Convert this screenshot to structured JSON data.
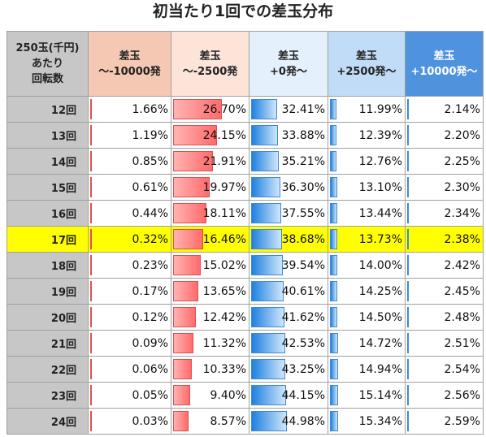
{
  "title": "初当たり1回での差玉分布",
  "header": {
    "spin": [
      "250玉(千円)",
      "あたり",
      "回転数"
    ],
    "columns": [
      [
        "差玉",
        "～-10000発"
      ],
      [
        "差玉",
        "～-2500発"
      ],
      [
        "差玉",
        "+0発～"
      ],
      [
        "差玉",
        "+2500発～"
      ],
      [
        "差玉",
        "+10000発～"
      ]
    ]
  },
  "chart_data": {
    "type": "table",
    "title": "初当たり1回での差玉分布",
    "row_header": "250玉(千円) あたり 回転数",
    "highlight_row": "17回",
    "categories": [
      "12回",
      "13回",
      "14回",
      "15回",
      "16回",
      "17回",
      "18回",
      "19回",
      "20回",
      "21回",
      "22回",
      "23回",
      "24回"
    ],
    "series": [
      {
        "name": "差玉 ～-10000発",
        "values": [
          1.66,
          1.19,
          0.85,
          0.61,
          0.44,
          0.32,
          0.23,
          0.17,
          0.12,
          0.09,
          0.06,
          0.05,
          0.03
        ],
        "labels": [
          "1.66%",
          "1.19%",
          "0.85%",
          "0.61%",
          "0.44%",
          "0.32%",
          "0.23%",
          "0.17%",
          "0.12%",
          "0.09%",
          "0.06%",
          "0.05%",
          "0.03%"
        ]
      },
      {
        "name": "差玉 ～-2500発",
        "values": [
          26.7,
          24.15,
          21.91,
          19.97,
          18.11,
          16.46,
          15.02,
          13.65,
          12.42,
          11.32,
          10.33,
          9.4,
          8.57
        ],
        "labels": [
          "26.70%",
          "24.15%",
          "21.91%",
          "19.97%",
          "18.11%",
          "16.46%",
          "15.02%",
          "13.65%",
          "12.42%",
          "11.32%",
          "10.33%",
          "9.40%",
          "8.57%"
        ]
      },
      {
        "name": "差玉 +0発～",
        "values": [
          32.41,
          33.88,
          35.21,
          36.3,
          37.55,
          38.68,
          39.54,
          40.61,
          41.62,
          42.53,
          43.25,
          44.15,
          44.98
        ],
        "labels": [
          "32.41%",
          "33.88%",
          "35.21%",
          "36.30%",
          "37.55%",
          "38.68%",
          "39.54%",
          "40.61%",
          "41.62%",
          "42.53%",
          "43.25%",
          "44.15%",
          "44.98%"
        ]
      },
      {
        "name": "差玉 +2500発～",
        "values": [
          11.99,
          12.39,
          12.76,
          13.1,
          13.44,
          13.73,
          14.0,
          14.25,
          14.5,
          14.72,
          14.94,
          15.14,
          15.34
        ],
        "labels": [
          "11.99%",
          "12.39%",
          "12.76%",
          "13.10%",
          "13.44%",
          "13.73%",
          "14.00%",
          "14.25%",
          "14.50%",
          "14.72%",
          "14.94%",
          "15.14%",
          "15.34%"
        ]
      },
      {
        "name": "差玉 +10000発～",
        "values": [
          2.14,
          2.2,
          2.25,
          2.3,
          2.34,
          2.38,
          2.42,
          2.45,
          2.48,
          2.51,
          2.54,
          2.56,
          2.59
        ],
        "labels": [
          "2.14%",
          "2.20%",
          "2.25%",
          "2.30%",
          "2.34%",
          "2.38%",
          "2.42%",
          "2.45%",
          "2.48%",
          "2.51%",
          "2.54%",
          "2.56%",
          "2.59%"
        ]
      }
    ],
    "bar_colors": [
      "#ff6b6b",
      "#ff6b6b",
      "#1f80e0",
      "#1f80e0",
      "#1f80e0"
    ],
    "highlight_color": "#ffff00"
  }
}
